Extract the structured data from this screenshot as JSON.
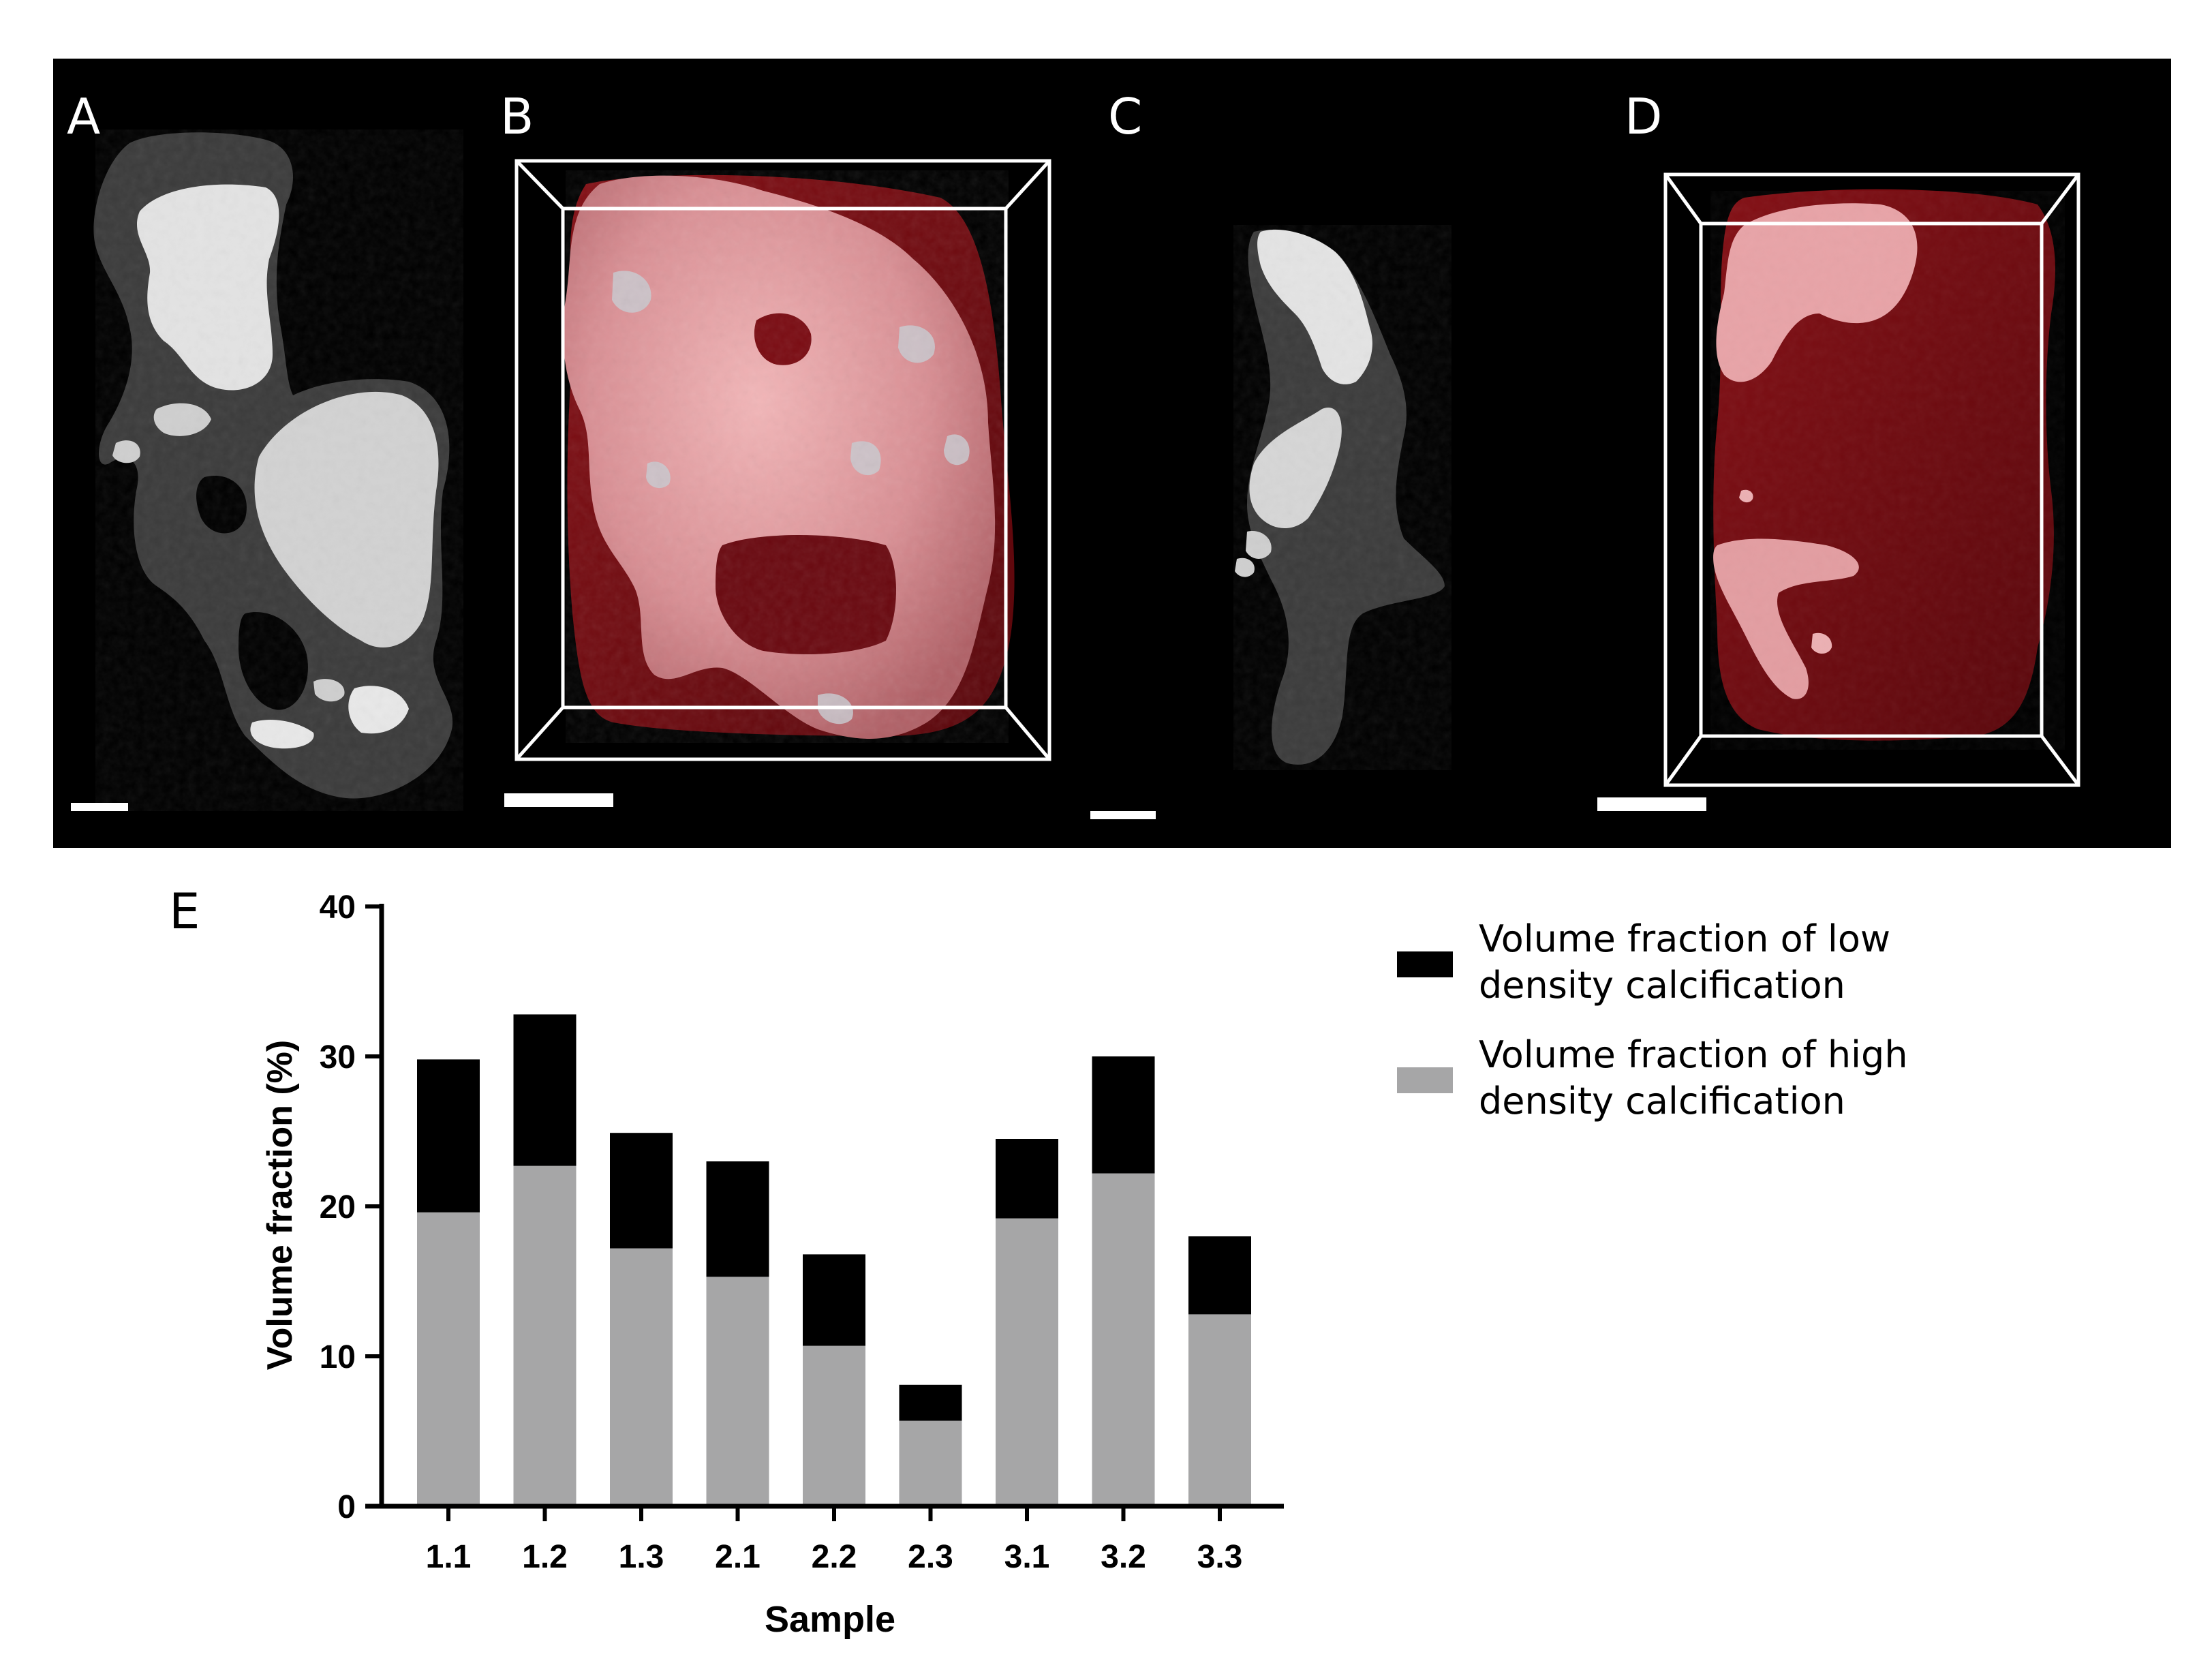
{
  "panels": {
    "A": "A",
    "B": "B",
    "C": "C",
    "D": "D",
    "E": "E"
  },
  "colors": {
    "background_strip": "#000000",
    "low_density": "#000000",
    "high_density": "#a6a6a7",
    "tissue_red": "#7a0b12",
    "calcification_pink": "#e8a2a6",
    "ct_gray": "#3a3a3a",
    "ct_white": "#e6e6e6"
  },
  "chart_data": {
    "type": "bar",
    "stacked": true,
    "categories": [
      "1.1",
      "1.2",
      "1.3",
      "2.1",
      "2.2",
      "2.3",
      "3.1",
      "3.2",
      "3.3"
    ],
    "series": [
      {
        "name": "Volume fraction of high density calcification",
        "values": [
          19.6,
          22.7,
          17.2,
          15.3,
          10.7,
          5.7,
          19.2,
          22.2,
          12.8
        ]
      },
      {
        "name": "Volume fraction of low density calcification",
        "values": [
          10.2,
          10.1,
          7.7,
          7.7,
          6.1,
          2.4,
          5.3,
          7.8,
          5.2
        ]
      }
    ],
    "xlabel": "Sample",
    "ylabel": "Volume fraction (%)",
    "ylim": [
      0,
      40
    ],
    "yticks": [
      "0",
      "10",
      "20",
      "30",
      "40"
    ],
    "grid": false,
    "legend_position": "right",
    "legend": [
      {
        "lines": [
          "Volume fraction of low",
          "density calcification"
        ],
        "swatch": "low"
      },
      {
        "lines": [
          "Volume fraction of high",
          "density calcification"
        ],
        "swatch": "high"
      }
    ]
  }
}
